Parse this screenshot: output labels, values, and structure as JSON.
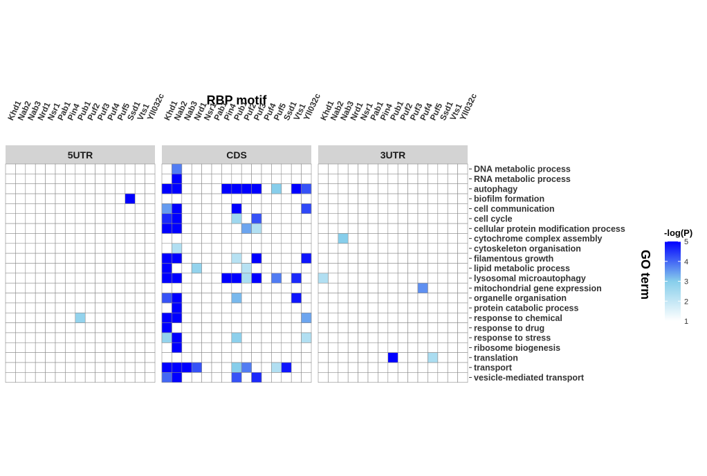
{
  "chart_data": {
    "type": "heatmap",
    "title": "RBP motif",
    "ylabel": "GO term",
    "panels": [
      "5UTR",
      "CDS",
      "3UTR"
    ],
    "motifs": [
      "Khd1",
      "Nab2",
      "Nab3",
      "Nrd1",
      "Nsr1",
      "Pab1",
      "Pin4",
      "Pub1",
      "Puf2",
      "Puf3",
      "Puf4",
      "Puf5",
      "Ssd1",
      "Vts1",
      "Yll032c"
    ],
    "go_terms": [
      "DNA metabolic process",
      "RNA metabolic process",
      "autophagy",
      "biofilm formation",
      "cell communication",
      "cell cycle",
      "cellular protein modification process",
      "cytochrome complex assembly",
      "cytoskeleton organisation",
      "filamentous growth",
      "lipid metabolic process",
      "lysosomal microautophagy",
      "mitochondrial gene expression",
      "organelle organisation",
      "protein catabolic process",
      "response to chemical",
      "response to drug",
      "response to stress",
      "ribosome biogenesis",
      "translation",
      "transport",
      "vesicle-mediated transport"
    ],
    "legend": {
      "title": "-log(P)",
      "ticks": [
        1,
        2,
        3,
        4,
        5
      ],
      "range": [
        1,
        5
      ],
      "low_color": "#ffffff",
      "high_color": "#0000ff"
    },
    "cells": [
      {
        "panel": "5UTR",
        "term": "biofilm formation",
        "motif": "Ssd1",
        "value": 5
      },
      {
        "panel": "5UTR",
        "term": "response to chemical",
        "motif": "Pub1",
        "value": 2.8
      },
      {
        "panel": "CDS",
        "term": "DNA metabolic process",
        "motif": "Nab2",
        "value": 3.8
      },
      {
        "panel": "CDS",
        "term": "RNA metabolic process",
        "motif": "Nab2",
        "value": 5
      },
      {
        "panel": "CDS",
        "term": "autophagy",
        "motif": "Khd1",
        "value": 5
      },
      {
        "panel": "CDS",
        "term": "autophagy",
        "motif": "Nab2",
        "value": 5
      },
      {
        "panel": "CDS",
        "term": "autophagy",
        "motif": "Pin4",
        "value": 5
      },
      {
        "panel": "CDS",
        "term": "autophagy",
        "motif": "Pub1",
        "value": 5
      },
      {
        "panel": "CDS",
        "term": "autophagy",
        "motif": "Puf2",
        "value": 5
      },
      {
        "panel": "CDS",
        "term": "autophagy",
        "motif": "Puf3",
        "value": 5
      },
      {
        "panel": "CDS",
        "term": "autophagy",
        "motif": "Puf5",
        "value": 3
      },
      {
        "panel": "CDS",
        "term": "autophagy",
        "motif": "Vts1",
        "value": 5
      },
      {
        "panel": "CDS",
        "term": "autophagy",
        "motif": "Yll032c",
        "value": 4.2
      },
      {
        "panel": "CDS",
        "term": "cell communication",
        "motif": "Khd1",
        "value": 3.5
      },
      {
        "panel": "CDS",
        "term": "cell communication",
        "motif": "Nab2",
        "value": 5
      },
      {
        "panel": "CDS",
        "term": "cell communication",
        "motif": "Pub1",
        "value": 5
      },
      {
        "panel": "CDS",
        "term": "cell communication",
        "motif": "Yll032c",
        "value": 4.3
      },
      {
        "panel": "CDS",
        "term": "cell cycle",
        "motif": "Khd1",
        "value": 4.6
      },
      {
        "panel": "CDS",
        "term": "cell cycle",
        "motif": "Nab2",
        "value": 5
      },
      {
        "panel": "CDS",
        "term": "cell cycle",
        "motif": "Pub1",
        "value": 2.6
      },
      {
        "panel": "CDS",
        "term": "cell cycle",
        "motif": "Puf3",
        "value": 4.2
      },
      {
        "panel": "CDS",
        "term": "cellular protein modification process",
        "motif": "Khd1",
        "value": 5
      },
      {
        "panel": "CDS",
        "term": "cellular protein modification process",
        "motif": "Nab2",
        "value": 5
      },
      {
        "panel": "CDS",
        "term": "cellular protein modification process",
        "motif": "Puf2",
        "value": 3.4
      },
      {
        "panel": "CDS",
        "term": "cellular protein modification process",
        "motif": "Puf3",
        "value": 2.3
      },
      {
        "panel": "CDS",
        "term": "cytoskeleton organisation",
        "motif": "Nab2",
        "value": 2.3
      },
      {
        "panel": "CDS",
        "term": "filamentous growth",
        "motif": "Khd1",
        "value": 5
      },
      {
        "panel": "CDS",
        "term": "filamentous growth",
        "motif": "Nab2",
        "value": 5
      },
      {
        "panel": "CDS",
        "term": "filamentous growth",
        "motif": "Pub1",
        "value": 2.2
      },
      {
        "panel": "CDS",
        "term": "filamentous growth",
        "motif": "Puf3",
        "value": 5
      },
      {
        "panel": "CDS",
        "term": "filamentous growth",
        "motif": "Yll032c",
        "value": 4.8
      },
      {
        "panel": "CDS",
        "term": "lipid metabolic process",
        "motif": "Khd1",
        "value": 5
      },
      {
        "panel": "CDS",
        "term": "lipid metabolic process",
        "motif": "Nrd1",
        "value": 2.8
      },
      {
        "panel": "CDS",
        "term": "lipid metabolic process",
        "motif": "Puf2",
        "value": 2.2
      },
      {
        "panel": "CDS",
        "term": "lysosomal microautophagy",
        "motif": "Khd1",
        "value": 5
      },
      {
        "panel": "CDS",
        "term": "lysosomal microautophagy",
        "motif": "Nab2",
        "value": 5
      },
      {
        "panel": "CDS",
        "term": "lysosomal microautophagy",
        "motif": "Pin4",
        "value": 5
      },
      {
        "panel": "CDS",
        "term": "lysosomal microautophagy",
        "motif": "Pub1",
        "value": 5
      },
      {
        "panel": "CDS",
        "term": "lysosomal microautophagy",
        "motif": "Puf2",
        "value": 2.4
      },
      {
        "panel": "CDS",
        "term": "lysosomal microautophagy",
        "motif": "Puf3",
        "value": 5
      },
      {
        "panel": "CDS",
        "term": "lysosomal microautophagy",
        "motif": "Puf5",
        "value": 3.8
      },
      {
        "panel": "CDS",
        "term": "lysosomal microautophagy",
        "motif": "Vts1",
        "value": 4.6
      },
      {
        "panel": "CDS",
        "term": "organelle organisation",
        "motif": "Khd1",
        "value": 4.2
      },
      {
        "panel": "CDS",
        "term": "organelle organisation",
        "motif": "Nab2",
        "value": 5
      },
      {
        "panel": "CDS",
        "term": "organelle organisation",
        "motif": "Pub1",
        "value": 3.2
      },
      {
        "panel": "CDS",
        "term": "organelle organisation",
        "motif": "Vts1",
        "value": 4.8
      },
      {
        "panel": "CDS",
        "term": "protein catabolic process",
        "motif": "Nab2",
        "value": 5
      },
      {
        "panel": "CDS",
        "term": "response to chemical",
        "motif": "Khd1",
        "value": 5
      },
      {
        "panel": "CDS",
        "term": "response to chemical",
        "motif": "Nab2",
        "value": 5
      },
      {
        "panel": "CDS",
        "term": "response to chemical",
        "motif": "Yll032c",
        "value": 3.4
      },
      {
        "panel": "CDS",
        "term": "response to drug",
        "motif": "Khd1",
        "value": 5
      },
      {
        "panel": "CDS",
        "term": "response to stress",
        "motif": "Khd1",
        "value": 2.8
      },
      {
        "panel": "CDS",
        "term": "response to stress",
        "motif": "Nab2",
        "value": 5
      },
      {
        "panel": "CDS",
        "term": "response to stress",
        "motif": "Pub1",
        "value": 2.9
      },
      {
        "panel": "CDS",
        "term": "response to stress",
        "motif": "Yll032c",
        "value": 2.3
      },
      {
        "panel": "CDS",
        "term": "ribosome biogenesis",
        "motif": "Nab2",
        "value": 5
      },
      {
        "panel": "CDS",
        "term": "transport",
        "motif": "Khd1",
        "value": 5
      },
      {
        "panel": "CDS",
        "term": "transport",
        "motif": "Nab2",
        "value": 5
      },
      {
        "panel": "CDS",
        "term": "transport",
        "motif": "Nab3",
        "value": 5
      },
      {
        "panel": "CDS",
        "term": "transport",
        "motif": "Nrd1",
        "value": 4.2
      },
      {
        "panel": "CDS",
        "term": "transport",
        "motif": "Pub1",
        "value": 3.0
      },
      {
        "panel": "CDS",
        "term": "transport",
        "motif": "Puf2",
        "value": 3.8
      },
      {
        "panel": "CDS",
        "term": "transport",
        "motif": "Puf5",
        "value": 2.3
      },
      {
        "panel": "CDS",
        "term": "transport",
        "motif": "Ssd1",
        "value": 4.8
      },
      {
        "panel": "CDS",
        "term": "vesicle-mediated transport",
        "motif": "Khd1",
        "value": 4.0
      },
      {
        "panel": "CDS",
        "term": "vesicle-mediated transport",
        "motif": "Nab2",
        "value": 5
      },
      {
        "panel": "CDS",
        "term": "vesicle-mediated transport",
        "motif": "Pub1",
        "value": 4.2
      },
      {
        "panel": "CDS",
        "term": "vesicle-mediated transport",
        "motif": "Puf3",
        "value": 4.6
      },
      {
        "panel": "3UTR",
        "term": "cytochrome complex assembly",
        "motif": "Nab3",
        "value": 3.0
      },
      {
        "panel": "3UTR",
        "term": "lysosomal microautophagy",
        "motif": "Khd1",
        "value": 2.3
      },
      {
        "panel": "3UTR",
        "term": "mitochondrial gene expression",
        "motif": "Puf4",
        "value": 3.6
      },
      {
        "panel": "3UTR",
        "term": "translation",
        "motif": "Pub1",
        "value": 5
      },
      {
        "panel": "3UTR",
        "term": "translation",
        "motif": "Puf5",
        "value": 2.4
      }
    ]
  }
}
